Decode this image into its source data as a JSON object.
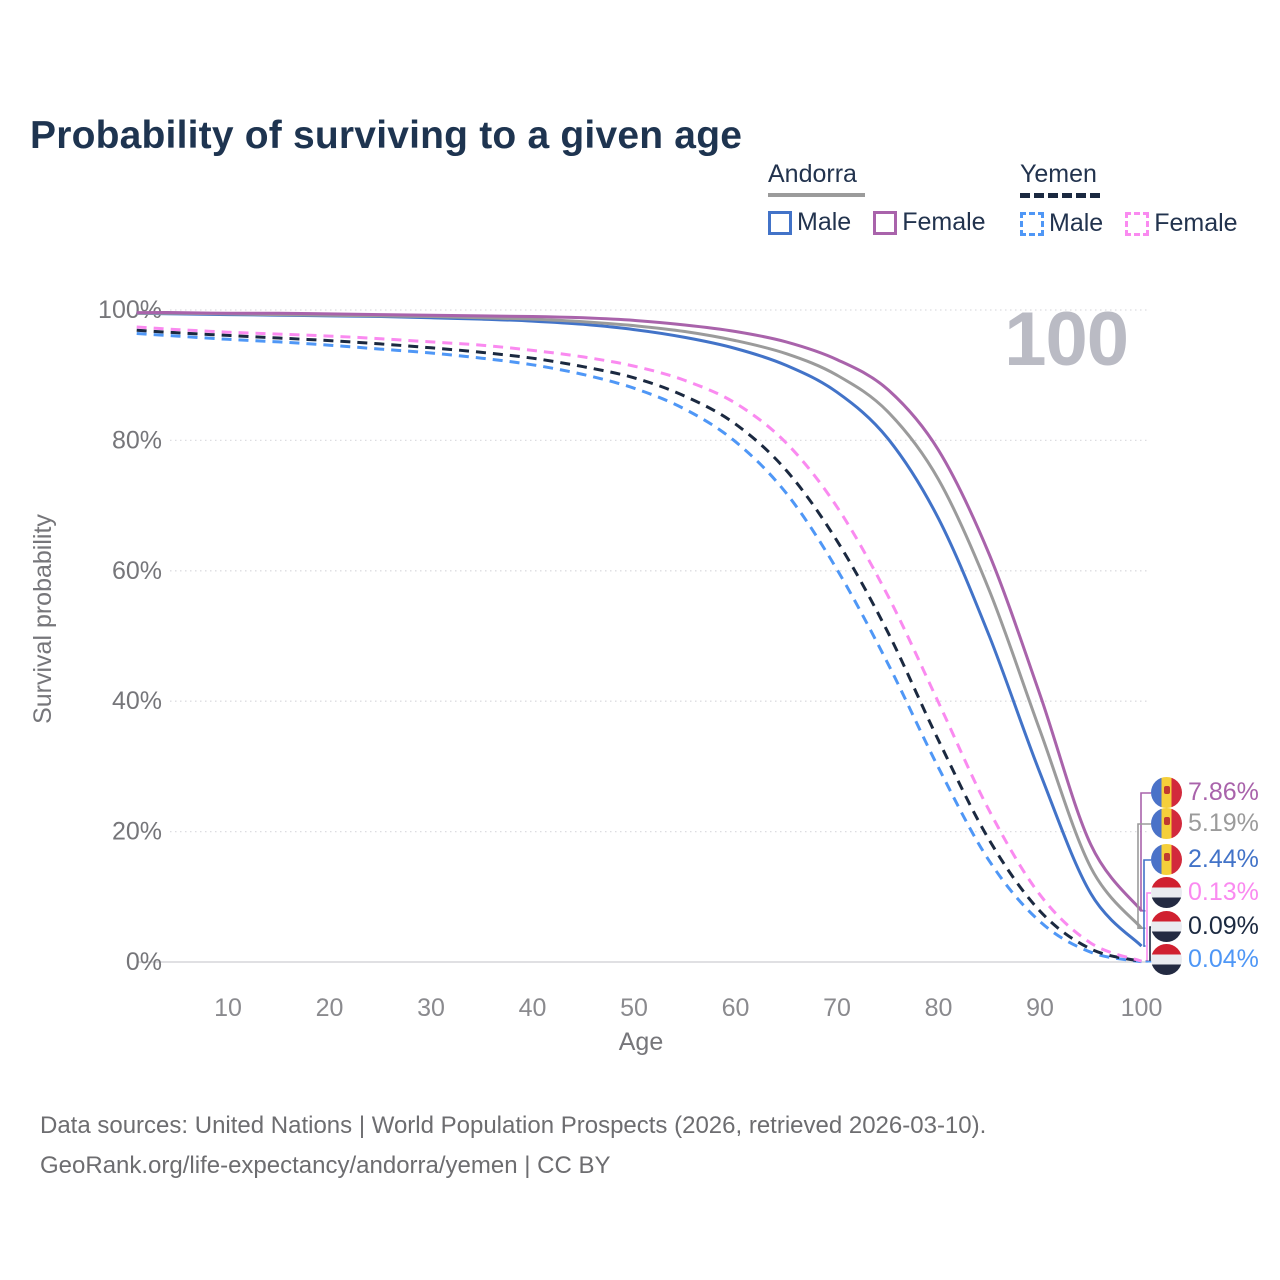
{
  "page": {
    "title": "Probability of surviving to a given age",
    "watermark_age": "100",
    "footer_line1": "Data sources: United Nations | World Population Prospects (2026, retrieved 2026-03-10).",
    "footer_line2": "GeoRank.org/life-expectancy/andorra/yemen | CC BY"
  },
  "legend": {
    "position": "top-right",
    "groups": [
      {
        "name": "Andorra",
        "line_style": "solid",
        "line_color": "#9b9b9b",
        "items": [
          {
            "label": "Male",
            "color": "#4273c8",
            "swatch": "solid-outline-square"
          },
          {
            "label": "Female",
            "color": "#a963ab",
            "swatch": "solid-outline-square"
          }
        ]
      },
      {
        "name": "Yemen",
        "line_style": "dashed",
        "line_color": "#1b2940",
        "items": [
          {
            "label": "Male",
            "color": "#4f97f6",
            "swatch": "dashed-outline-square"
          },
          {
            "label": "Female",
            "color": "#fa8af0",
            "swatch": "dashed-outline-square"
          }
        ]
      }
    ]
  },
  "chart_data": {
    "type": "line",
    "title": "Probability of surviving to a given age",
    "xlabel": "Age",
    "ylabel": "Survival probability",
    "xlim": [
      1,
      100
    ],
    "ylim": [
      0,
      100
    ],
    "grid": "horizontal-dotted",
    "age_indicator": "100",
    "x_ticks": [
      {
        "label": "10",
        "value": 10
      },
      {
        "label": "20",
        "value": 20
      },
      {
        "label": "30",
        "value": 30
      },
      {
        "label": "40",
        "value": 40
      },
      {
        "label": "50",
        "value": 50
      },
      {
        "label": "60",
        "value": 60
      },
      {
        "label": "70",
        "value": 70
      },
      {
        "label": "80",
        "value": 80
      },
      {
        "label": "90",
        "value": 90
      },
      {
        "label": "100",
        "value": 100
      }
    ],
    "y_ticks": [
      {
        "label": "100%",
        "value": 100
      },
      {
        "label": "80%",
        "value": 80
      },
      {
        "label": "60%",
        "value": 60
      },
      {
        "label": "40%",
        "value": 40
      },
      {
        "label": "20%",
        "value": 20
      },
      {
        "label": "0%",
        "value": 0
      }
    ],
    "ages": [
      1,
      5,
      10,
      15,
      20,
      25,
      30,
      35,
      40,
      45,
      50,
      55,
      60,
      65,
      70,
      75,
      80,
      85,
      90,
      95,
      100
    ],
    "series": [
      {
        "name": "Andorra Female",
        "country": "Andorra",
        "sex": "Female",
        "style": "solid",
        "color": "#a963ab",
        "flag": "andorra",
        "end_label": "7.86%",
        "values": [
          99.6,
          99.6,
          99.5,
          99.5,
          99.4,
          99.3,
          99.2,
          99.1,
          99.0,
          98.8,
          98.4,
          97.7,
          96.7,
          95.1,
          92.4,
          87.8,
          78.5,
          62.5,
          41.0,
          18.0,
          7.86
        ]
      },
      {
        "name": "Andorra Both sexes",
        "country": "Andorra",
        "sex": "Both",
        "style": "solid",
        "color": "#9b9b9b",
        "flag": "andorra",
        "end_label": "5.19%",
        "values": [
          99.5,
          99.5,
          99.4,
          99.3,
          99.2,
          99.1,
          99.0,
          98.8,
          98.6,
          98.2,
          97.6,
          96.7,
          95.3,
          93.3,
          90.0,
          84.4,
          74.0,
          57.0,
          35.5,
          14.5,
          5.19
        ]
      },
      {
        "name": "Andorra Male",
        "country": "Andorra",
        "sex": "Male",
        "style": "solid",
        "color": "#4273c8",
        "flag": "andorra",
        "end_label": "2.44%",
        "values": [
          99.5,
          99.4,
          99.3,
          99.2,
          99.1,
          99.0,
          98.8,
          98.6,
          98.3,
          97.8,
          97.0,
          95.8,
          94.1,
          91.5,
          87.4,
          80.3,
          68.0,
          50.0,
          29.0,
          10.5,
          2.44
        ]
      },
      {
        "name": "Yemen Female",
        "country": "Yemen",
        "sex": "Female",
        "style": "dashed",
        "color": "#fa8af0",
        "flag": "yemen",
        "end_label": "0.13%",
        "values": [
          97.4,
          97.0,
          96.6,
          96.3,
          96.0,
          95.6,
          95.1,
          94.6,
          93.8,
          92.8,
          91.4,
          89.2,
          85.7,
          79.6,
          69.8,
          56.2,
          39.8,
          23.2,
          10.3,
          2.9,
          0.13
        ]
      },
      {
        "name": "Yemen Both sexes",
        "country": "Yemen",
        "sex": "Both",
        "style": "dashed",
        "color": "#1b2940",
        "flag": "yemen",
        "end_label": "0.09%",
        "values": [
          96.9,
          96.5,
          96.1,
          95.7,
          95.3,
          94.8,
          94.2,
          93.5,
          92.6,
          91.3,
          89.6,
          86.8,
          82.5,
          75.4,
          64.6,
          50.6,
          34.0,
          18.7,
          7.8,
          2.0,
          0.09
        ]
      },
      {
        "name": "Yemen Male",
        "country": "Yemen",
        "sex": "Male",
        "style": "dashed",
        "color": "#4f97f6",
        "flag": "yemen",
        "end_label": "0.04%",
        "values": [
          96.4,
          96.0,
          95.5,
          95.1,
          94.6,
          94.0,
          93.4,
          92.6,
          91.6,
          90.1,
          88.0,
          84.8,
          79.8,
          71.9,
          60.2,
          45.8,
          29.8,
          15.5,
          6.2,
          1.5,
          0.04
        ]
      }
    ]
  }
}
